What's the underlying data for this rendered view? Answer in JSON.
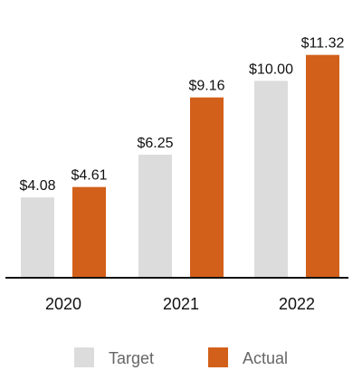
{
  "chart_data": {
    "type": "bar",
    "categories": [
      "2020",
      "2021",
      "2022"
    ],
    "series": [
      {
        "name": "Target",
        "values": [
          4.08,
          6.25,
          10.0
        ],
        "labels": [
          "$4.08",
          "$6.25",
          "$10.00"
        ],
        "color": "#dcdcdc"
      },
      {
        "name": "Actual",
        "values": [
          4.61,
          9.16,
          11.32
        ],
        "labels": [
          "$4.61",
          "$9.16",
          "$11.32"
        ],
        "color": "#d2601a"
      }
    ],
    "title": "",
    "xlabel": "",
    "ylabel": "",
    "ylim": [
      0,
      12.5
    ],
    "grid": false,
    "legend_position": "bottom",
    "axis_color": "#111111"
  }
}
